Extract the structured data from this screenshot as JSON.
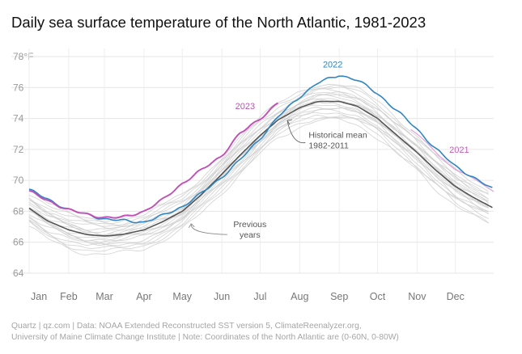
{
  "title": "Daily sea surface temperature of the North Atlantic, 1981-2023",
  "source_lines": [
    "Quartz | qz.com | Data: NOAA Extended Reconstructed SST version 5, ClimateReenalyzer.org,",
    "University of Maine Climate Change Institute | Note: Coordinates of the North Atlantic are (0-60N, 0-80W)"
  ],
  "colors": {
    "y2023": "#c050b6",
    "y2022": "#2f86c4",
    "mean": "#555555",
    "previous": "#cfcfcf",
    "grid": "#e6e6e6"
  },
  "chart_data": {
    "type": "line",
    "title": "Daily sea surface temperature of the North Atlantic, 1981-2023",
    "xlabel": "",
    "ylabel": "",
    "x_unit": "day of year",
    "xlim": [
      1,
      365
    ],
    "ylim": [
      64,
      78
    ],
    "y_ticks": [
      "64",
      "66",
      "68",
      "70",
      "72",
      "74",
      "76",
      "78°F"
    ],
    "y_tick_values": [
      64,
      66,
      68,
      70,
      72,
      74,
      76,
      78
    ],
    "x_tick_labels": [
      "Jan",
      "Feb",
      "Mar",
      "Apr",
      "May",
      "Jun",
      "Jul",
      "Aug",
      "Sep",
      "Oct",
      "Nov",
      "Dec"
    ],
    "x_tick_days": [
      1,
      32,
      60,
      91,
      121,
      152,
      182,
      213,
      244,
      274,
      305,
      335
    ],
    "series": [
      {
        "name": "Historical mean 1982-2011",
        "label_lines": [
          "Historical mean",
          "1982-2011"
        ],
        "x": [
          1,
          15,
          32,
          46,
          60,
          74,
          91,
          105,
          121,
          135,
          152,
          166,
          182,
          196,
          213,
          227,
          244,
          258,
          274,
          288,
          305,
          319,
          335,
          349,
          365
        ],
        "values": [
          68.2,
          67.4,
          66.8,
          66.5,
          66.4,
          66.5,
          66.8,
          67.3,
          68.0,
          69.0,
          70.4,
          71.6,
          72.9,
          73.9,
          74.7,
          75.1,
          75.1,
          74.8,
          74.0,
          73.0,
          71.8,
          70.7,
          69.6,
          68.9,
          68.2
        ]
      },
      {
        "name": "2022",
        "label": "2022",
        "x": [
          1,
          15,
          32,
          46,
          60,
          74,
          91,
          105,
          121,
          135,
          152,
          166,
          182,
          196,
          213,
          227,
          244,
          258,
          274,
          288,
          305,
          319,
          335,
          349,
          365
        ],
        "values": [
          69.4,
          68.8,
          68.1,
          67.8,
          67.5,
          67.4,
          67.3,
          67.7,
          68.3,
          69.1,
          70.2,
          71.3,
          72.7,
          74.1,
          75.4,
          76.3,
          76.8,
          76.5,
          75.6,
          74.6,
          73.3,
          72.1,
          70.9,
          70.2,
          69.4
        ]
      },
      {
        "name": "2023",
        "label": "2023",
        "x": [
          1,
          15,
          32,
          46,
          60,
          74,
          91,
          105,
          121,
          135,
          152,
          166,
          182,
          196
        ],
        "values": [
          69.3,
          68.7,
          68.1,
          67.8,
          67.6,
          67.6,
          68.0,
          68.7,
          69.8,
          70.6,
          71.6,
          73.0,
          74.0,
          75.0
        ]
      }
    ],
    "annotations": [
      {
        "text": "2021",
        "x": 338,
        "y": 72.0
      },
      {
        "text_lines": [
          "Previous",
          "years"
        ],
        "x": 155,
        "y": 66.5
      }
    ]
  }
}
